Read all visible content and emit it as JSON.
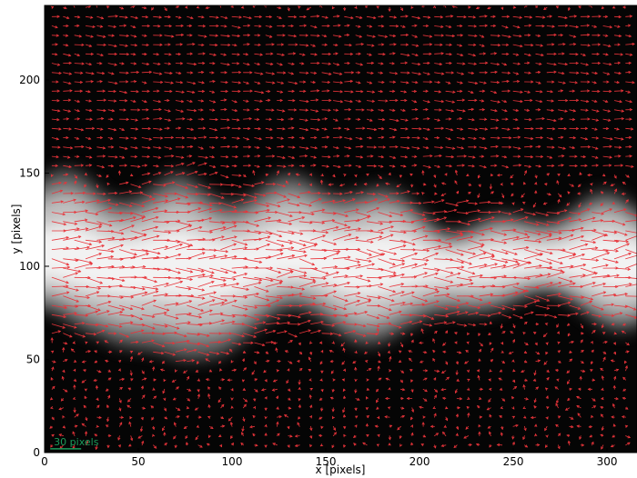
{
  "chart_data": {
    "type": "quiver",
    "title": "",
    "xlabel": "x [pixels]",
    "ylabel": "y [pixels]",
    "xlim": [
      0,
      316
    ],
    "ylim": [
      0,
      240
    ],
    "x_ticks": [
      "0",
      "50",
      "100",
      "150",
      "200",
      "250",
      "300"
    ],
    "y_ticks": [
      "0",
      "50",
      "100",
      "150",
      "200"
    ],
    "grid": false,
    "legend": "none",
    "background": "grayscale intensity image of a bright horizontal plume centred near y = 100",
    "plume": {
      "center_y": 102,
      "halfwidth_y": [
        [
          0,
          36
        ],
        [
          30,
          32
        ],
        [
          72,
          48
        ],
        [
          110,
          38
        ],
        [
          150,
          32
        ],
        [
          200,
          30
        ],
        [
          250,
          24
        ],
        [
          316,
          22
        ]
      ],
      "peak_intensity": 0.95
    },
    "vector_field": {
      "color": "#e8343a",
      "flow_direction": "rightward along plume, weak and variable outside",
      "x_start": 4,
      "x_step": 6,
      "y_start": 4,
      "y_step": 5
    },
    "scale_key": {
      "label": "30 pixels",
      "length": 30,
      "color": "#1a9a5a",
      "position": "bottom-left"
    }
  }
}
